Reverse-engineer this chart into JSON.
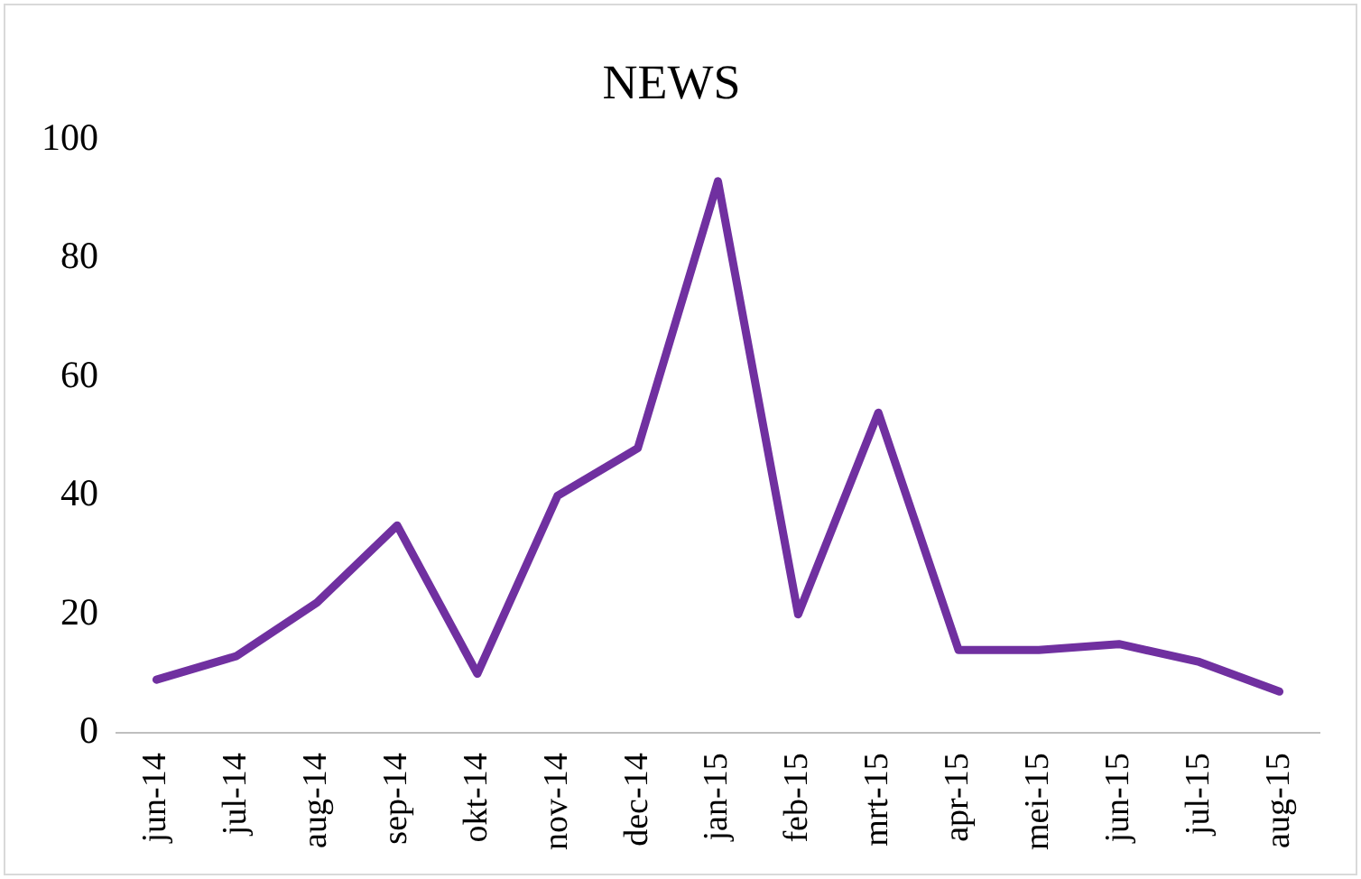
{
  "chart_data": {
    "type": "line",
    "title": "NEWS",
    "categories": [
      "jun-14",
      "jul-14",
      "aug-14",
      "sep-14",
      "okt-14",
      "nov-14",
      "dec-14",
      "jan-15",
      "feb-15",
      "mrt-15",
      "apr-15",
      "mei-15",
      "jun-15",
      "jul-15",
      "aug-15"
    ],
    "series": [
      {
        "color": "#7030a0",
        "values": [
          9,
          13,
          22,
          35,
          10,
          40,
          48,
          93,
          20,
          54,
          14,
          14,
          15,
          12,
          7
        ]
      }
    ],
    "ylim": [
      0,
      100
    ],
    "yticks": [
      0,
      20,
      40,
      60,
      80,
      100
    ],
    "grid": false,
    "legend": false,
    "marker": "none",
    "line_style": "solid"
  }
}
